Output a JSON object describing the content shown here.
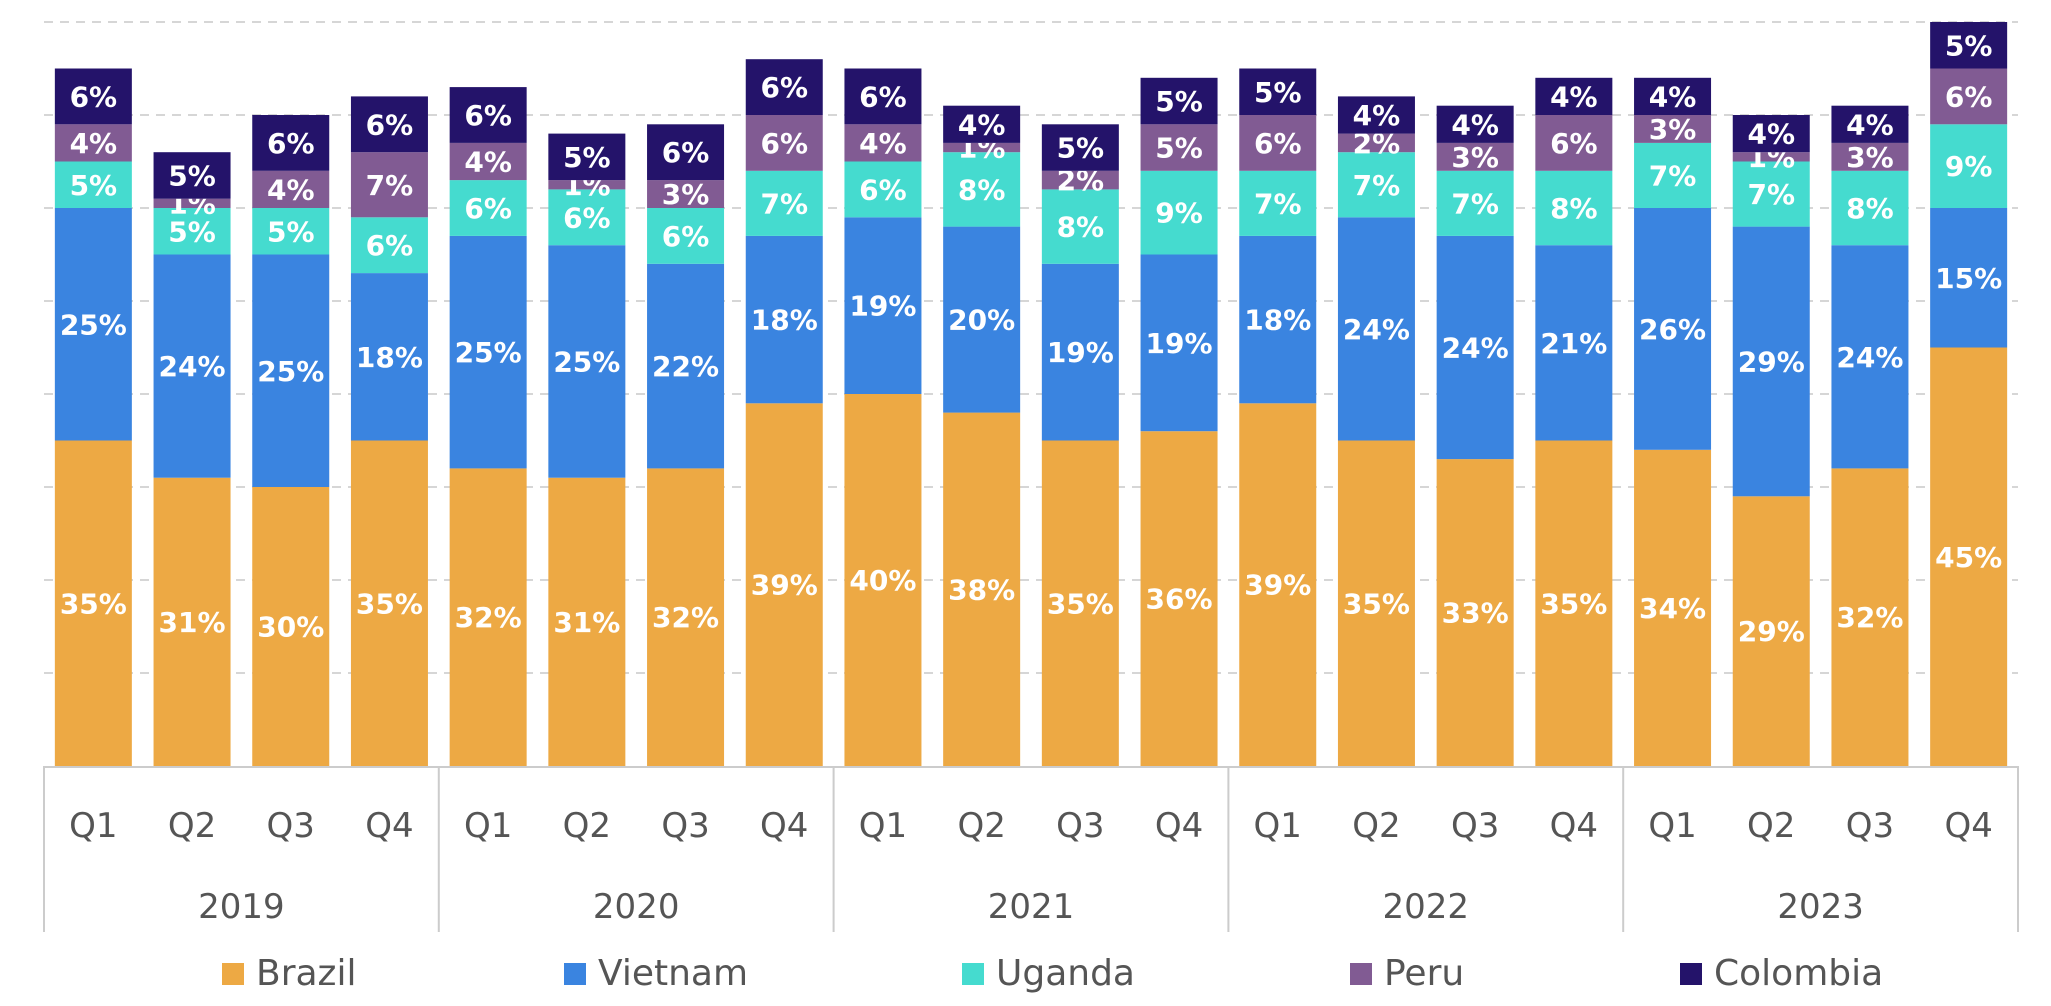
{
  "chart_data": {
    "type": "bar",
    "stacked": true,
    "title": "",
    "xlabel": "",
    "ylabel": "",
    "grid": true,
    "legend_position": "bottom",
    "years": [
      "2019",
      "2020",
      "2021",
      "2022",
      "2023"
    ],
    "quarters": [
      "Q1",
      "Q2",
      "Q3",
      "Q4"
    ],
    "categories": [
      "Q1",
      "Q2",
      "Q3",
      "Q4",
      "Q1",
      "Q2",
      "Q3",
      "Q4",
      "Q1",
      "Q2",
      "Q3",
      "Q4",
      "Q1",
      "Q2",
      "Q3",
      "Q4",
      "Q1",
      "Q2",
      "Q3",
      "Q4"
    ],
    "series": [
      {
        "name": "Brazil",
        "color": "#EDA944",
        "values": [
          35,
          31,
          30,
          35,
          32,
          31,
          32,
          39,
          40,
          38,
          35,
          36,
          39,
          35,
          33,
          35,
          34,
          29,
          32,
          45
        ]
      },
      {
        "name": "Vietnam",
        "color": "#3A84E0",
        "values": [
          25,
          24,
          25,
          18,
          25,
          25,
          22,
          18,
          19,
          20,
          19,
          19,
          18,
          24,
          24,
          21,
          26,
          29,
          24,
          15
        ]
      },
      {
        "name": "Uganda",
        "color": "#45DBCF",
        "values": [
          5,
          5,
          5,
          6,
          6,
          6,
          6,
          7,
          6,
          8,
          8,
          9,
          7,
          7,
          7,
          8,
          7,
          7,
          8,
          9
        ]
      },
      {
        "name": "Peru",
        "color": "#815B93",
        "values": [
          4,
          1,
          4,
          7,
          4,
          1,
          3,
          6,
          4,
          1,
          2,
          5,
          6,
          2,
          3,
          6,
          3,
          1,
          3,
          6
        ]
      },
      {
        "name": "Colombia",
        "color": "#24136A",
        "values": [
          6,
          5,
          6,
          6,
          6,
          5,
          6,
          6,
          6,
          4,
          5,
          5,
          5,
          4,
          4,
          4,
          4,
          4,
          4,
          5
        ]
      }
    ]
  }
}
